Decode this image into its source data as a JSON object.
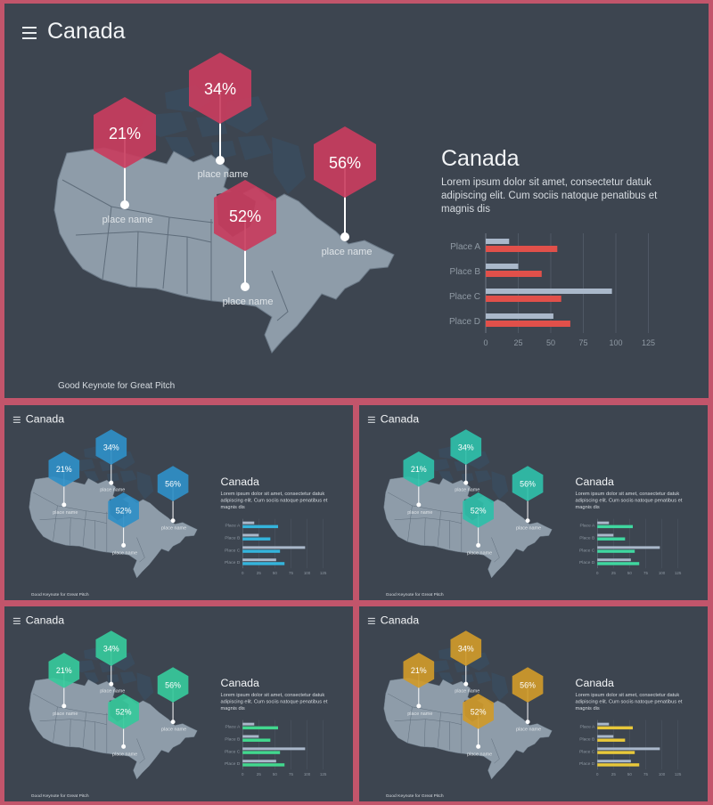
{
  "slides": [
    {
      "hex_color": "#c83d5e",
      "bar_b_color": "#e1504a"
    },
    {
      "hex_color": "#2f8fc7",
      "bar_b_color": "#34b4dc"
    },
    {
      "hex_color": "#2fbfa9",
      "bar_b_color": "#3fd7a0"
    },
    {
      "hex_color": "#36c99b",
      "bar_b_color": "#42d88e"
    },
    {
      "hex_color": "#cf9a2a",
      "bar_b_color": "#e8c83a"
    }
  ],
  "title": "Canada",
  "heading": "Canada",
  "description": "Lorem ipsum dolor sit amet, consectetur datuk adipiscing elit. Cum sociis natoque penatibus et magnis dis",
  "footer": "Good Keynote for Great Pitch",
  "markers": [
    {
      "percent": "21%",
      "label": "place name"
    },
    {
      "percent": "34%",
      "label": "place name"
    },
    {
      "percent": "56%",
      "label": "place name"
    },
    {
      "percent": "52%",
      "label": "place name"
    }
  ],
  "icons": {
    "menu": "hamburger-menu-icon"
  },
  "colors": {
    "slide_bg": "#3d4550",
    "frame": "#c2556b",
    "map_fill": "#8e9ca9",
    "bar_a": "#aab8ca"
  },
  "chart_data": {
    "type": "bar",
    "orientation": "horizontal",
    "categories": [
      "Place A",
      "Place B",
      "Place C",
      "Place D"
    ],
    "series": [
      {
        "values": [
          18,
          25,
          97,
          52
        ]
      },
      {
        "values": [
          55,
          43,
          58,
          65
        ]
      }
    ],
    "xticks": [
      "0",
      "25",
      "50",
      "75",
      "100",
      "125"
    ],
    "xlim": [
      0,
      125
    ]
  }
}
